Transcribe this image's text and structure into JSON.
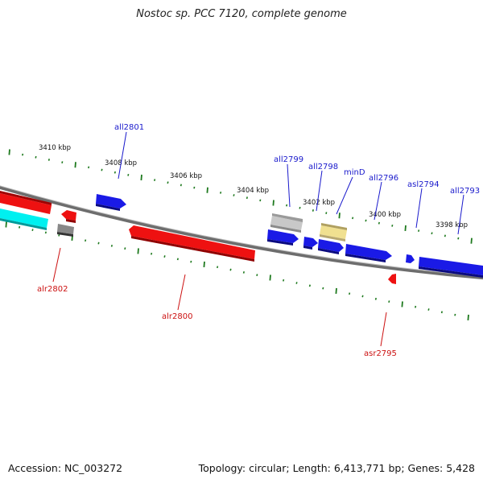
{
  "title": "Nostoc sp. PCC 7120, complete genome",
  "footer": {
    "accession": "Accession: NC_003272",
    "summary": "Topology: circular; Length: 6,413,771 bp; Genes: 5,428"
  },
  "colors": {
    "backbone": "#7a7a7a",
    "tick": "#1f7a1f",
    "forward_label": "#1a1acc",
    "reverse_label": "#cc1111",
    "gene_blue": "#1a1ae6",
    "gene_red": "#ee1111",
    "gene_cyan": "#00f0f0",
    "gene_gray": "#888888",
    "gene_light_gray": "#c8c8c8",
    "gene_yellow": "#f0e090"
  },
  "kbp_marks": [
    {
      "label": "3410 kbp",
      "pos": 3410
    },
    {
      "label": "3408 kbp",
      "pos": 3408
    },
    {
      "label": "3406 kbp",
      "pos": 3406
    },
    {
      "label": "3404 kbp",
      "pos": 3404
    },
    {
      "label": "3402 kbp",
      "pos": 3402
    },
    {
      "label": "3400 kbp",
      "pos": 3400
    },
    {
      "label": "3398 kbp",
      "pos": 3398
    }
  ],
  "genes": [
    {
      "name": "all2801",
      "strand": "forward",
      "color": "gene_blue"
    },
    {
      "name": "all2799",
      "strand": "forward",
      "color": "gene_light_gray"
    },
    {
      "name": "all2798",
      "strand": "forward",
      "color": "gene_blue"
    },
    {
      "name": "minD",
      "strand": "forward",
      "color": "gene_yellow"
    },
    {
      "name": "all2796",
      "strand": "forward",
      "color": "gene_blue"
    },
    {
      "name": "asl2794",
      "strand": "forward",
      "color": "gene_blue"
    },
    {
      "name": "all2793",
      "strand": "forward",
      "color": "gene_blue"
    },
    {
      "name": "alr2802",
      "strand": "reverse",
      "color": "gene_red"
    },
    {
      "name": "alr2800",
      "strand": "reverse",
      "color": "gene_red"
    },
    {
      "name": "asr2795",
      "strand": "reverse",
      "color": "gene_red"
    }
  ]
}
